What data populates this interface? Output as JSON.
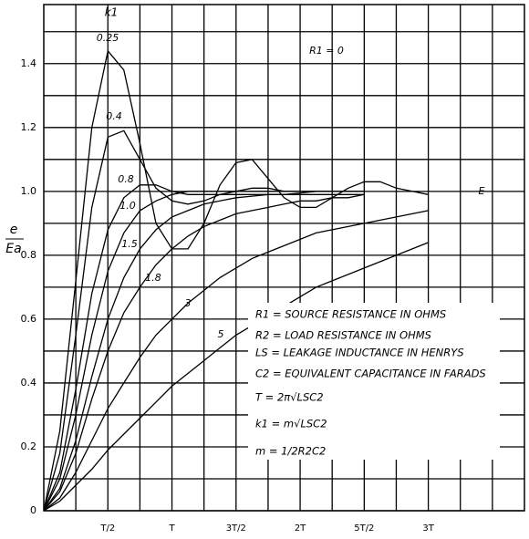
{
  "chart_data": {
    "type": "line",
    "ylabel": {
      "numerator": "e",
      "denominator": "Ea"
    },
    "xlim": [
      0,
      3.75
    ],
    "ylim": [
      0,
      1.585
    ],
    "xticks": [
      {
        "value": 0.5,
        "label": "T/2"
      },
      {
        "value": 1,
        "label": "T"
      },
      {
        "value": 1.5,
        "label": "3T/2"
      },
      {
        "value": 2,
        "label": "2T"
      },
      {
        "value": 2.5,
        "label": "5T/2"
      },
      {
        "value": 3,
        "label": "3T"
      }
    ],
    "xminorticks": [
      0.25,
      0.75,
      1.25,
      1.75,
      2.25,
      2.75,
      3.25,
      3.5
    ],
    "yticks": [
      0,
      0.2,
      0.4,
      0.6,
      0.8,
      {
        "value": 1,
        "label": "1.0"
      },
      1.2,
      1.4
    ],
    "yminorticks": [
      0.1,
      0.3,
      0.5,
      0.7,
      0.9,
      1.1,
      1.3,
      1.5
    ],
    "grid": true,
    "x": [
      0,
      0.125,
      0.25,
      0.375,
      0.5,
      0.625,
      0.75,
      0.875,
      1.0,
      1.125,
      1.25,
      1.375,
      1.5,
      1.625,
      1.75,
      1.875,
      2.0,
      2.125,
      2.25,
      2.375,
      2.5,
      2.625,
      2.75,
      2.875,
      3.0
    ],
    "series": [
      {
        "name": "0.25",
        "color": "#000000",
        "values": [
          0,
          0.25,
          0.72,
          1.2,
          1.44,
          1.38,
          1.15,
          0.9,
          0.82,
          0.82,
          0.9,
          1.02,
          1.09,
          1.1,
          1.04,
          0.98,
          0.95,
          0.95,
          0.98,
          1.01,
          1.03,
          1.03,
          1.01,
          1.0,
          0.99
        ]
      },
      {
        "name": "0.4",
        "color": "#000000",
        "values": [
          0,
          0.18,
          0.55,
          0.95,
          1.17,
          1.19,
          1.1,
          1.01,
          0.97,
          0.96,
          0.97,
          0.99,
          1.0,
          1.01,
          1.01,
          1.0,
          1.0,
          1.0,
          1.0,
          1.0,
          1.0,
          null,
          null,
          null,
          null
        ]
      },
      {
        "name": "0.8",
        "color": "#000000",
        "values": [
          0,
          0.12,
          0.38,
          0.68,
          0.88,
          0.98,
          1.02,
          1.02,
          1.0,
          0.99,
          0.99,
          0.99,
          0.99,
          0.99,
          0.99,
          0.99,
          0.99,
          0.99,
          0.99,
          0.99,
          0.99,
          null,
          null,
          null,
          null
        ]
      },
      {
        "name": "1.0",
        "color": "#000000",
        "values": [
          0,
          0.1,
          0.3,
          0.55,
          0.75,
          0.87,
          0.94,
          0.97,
          0.99,
          1.0,
          1.0,
          1.0,
          1.0,
          1.0,
          1.0,
          1.0,
          1.0,
          1.0,
          1.0,
          1.0,
          1.0,
          null,
          null,
          null,
          null
        ]
      },
      {
        "name": "1.5",
        "color": "#000000",
        "values": [
          0,
          0.07,
          0.22,
          0.42,
          0.6,
          0.73,
          0.82,
          0.88,
          0.92,
          0.94,
          0.96,
          0.97,
          0.98,
          0.985,
          0.99,
          0.99,
          0.995,
          1.0,
          1.0,
          1.0,
          1.0,
          null,
          null,
          null,
          null
        ]
      },
      {
        "name": "1.8",
        "color": "#000000",
        "values": [
          0,
          0.06,
          0.18,
          0.35,
          0.5,
          0.62,
          0.7,
          0.77,
          0.82,
          0.86,
          0.89,
          0.91,
          0.93,
          0.94,
          0.95,
          0.96,
          0.97,
          0.97,
          0.98,
          0.98,
          0.99,
          null,
          null,
          null,
          null
        ]
      },
      {
        "name": "3",
        "color": "#000000",
        "values": [
          0,
          0.04,
          0.12,
          0.22,
          0.32,
          0.4,
          0.48,
          0.55,
          0.6,
          0.65,
          0.69,
          0.73,
          0.76,
          0.79,
          0.81,
          0.83,
          0.85,
          0.87,
          0.88,
          0.89,
          0.9,
          0.91,
          0.92,
          0.93,
          0.94
        ]
      },
      {
        "name": "5",
        "color": "#000000",
        "values": [
          0,
          0.03,
          0.08,
          0.13,
          0.19,
          0.24,
          0.29,
          0.34,
          0.39,
          0.43,
          0.47,
          0.51,
          0.55,
          0.58,
          0.61,
          0.64,
          0.67,
          0.7,
          0.72,
          0.74,
          0.76,
          0.78,
          0.8,
          0.82,
          0.84
        ]
      }
    ],
    "annotations": {
      "k_header": "k1",
      "r_zero": "R1 = 0",
      "final": "E"
    },
    "legend_lines": [
      "R1 = SOURCE RESISTANCE IN OHMS",
      "R2 = LOAD RESISTANCE IN OHMS",
      "LS = LEAKAGE INDUCTANCE IN HENRYS",
      "C2 = EQUIVALENT CAPACITANCE IN FARADS",
      "T = 2π√LSC2",
      "k1 = m√LSC2",
      "m = 1/2R2C2"
    ]
  }
}
